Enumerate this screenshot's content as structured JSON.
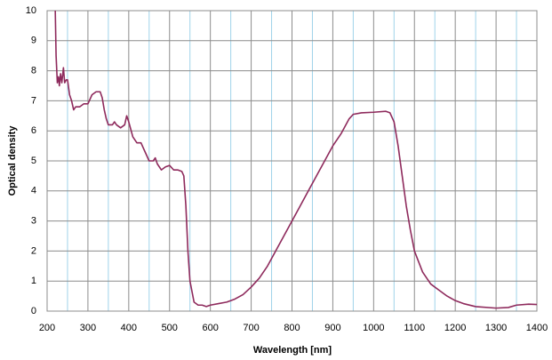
{
  "chart_data": {
    "type": "line",
    "x_label": "Wavelength [nm]",
    "y_label": "Optical density",
    "xlim": [
      200,
      1400
    ],
    "xticks": [
      200,
      300,
      400,
      500,
      600,
      700,
      800,
      900,
      1000,
      1100,
      1200,
      1300,
      1400
    ],
    "x_minor_grid": [
      250,
      350,
      450,
      550,
      650,
      750,
      850,
      950,
      1050,
      1150,
      1250,
      1350
    ],
    "minor_grid_color": "#9fd3ea",
    "grid_color": "#8c8c8c",
    "ylim": [
      0,
      10
    ],
    "yticks": [
      0,
      1,
      2,
      3,
      4,
      5,
      6,
      7,
      8,
      9,
      10
    ],
    "grid": true,
    "x": [
      220,
      222,
      225,
      228,
      230,
      233,
      236,
      240,
      243,
      247,
      250,
      255,
      260,
      265,
      270,
      280,
      290,
      300,
      310,
      320,
      330,
      335,
      340,
      345,
      350,
      360,
      365,
      370,
      380,
      390,
      395,
      400,
      410,
      420,
      430,
      440,
      450,
      460,
      465,
      470,
      480,
      490,
      500,
      510,
      520,
      530,
      535,
      540,
      545,
      550,
      560,
      570,
      580,
      590,
      600,
      620,
      640,
      660,
      680,
      700,
      720,
      740,
      760,
      780,
      800,
      820,
      840,
      860,
      880,
      900,
      920,
      940,
      950,
      970,
      1000,
      1030,
      1040,
      1050,
      1060,
      1070,
      1080,
      1090,
      1100,
      1120,
      1140,
      1160,
      1180,
      1200,
      1220,
      1250,
      1300,
      1330,
      1350,
      1380,
      1400
    ],
    "series": [
      {
        "color": "#8e2a5c",
        "values": [
          10,
          8.5,
          7.6,
          7.8,
          7.5,
          7.9,
          7.6,
          8.1,
          7.6,
          7.7,
          7.7,
          7.2,
          7.0,
          6.7,
          6.8,
          6.8,
          6.9,
          6.9,
          7.2,
          7.3,
          7.3,
          7.1,
          6.7,
          6.4,
          6.2,
          6.2,
          6.3,
          6.2,
          6.1,
          6.2,
          6.5,
          6.3,
          5.8,
          5.6,
          5.6,
          5.3,
          5.0,
          5.0,
          5.1,
          4.9,
          4.7,
          4.8,
          4.85,
          4.7,
          4.7,
          4.65,
          4.5,
          3.5,
          2.0,
          1.0,
          0.3,
          0.2,
          0.2,
          0.15,
          0.2,
          0.25,
          0.3,
          0.4,
          0.55,
          0.8,
          1.1,
          1.5,
          2.0,
          2.5,
          3.0,
          3.5,
          4.0,
          4.5,
          5.0,
          5.5,
          5.9,
          6.4,
          6.55,
          6.6,
          6.62,
          6.65,
          6.6,
          6.3,
          5.5,
          4.5,
          3.5,
          2.7,
          2.0,
          1.3,
          0.9,
          0.7,
          0.5,
          0.35,
          0.25,
          0.15,
          0.1,
          0.12,
          0.2,
          0.23,
          0.22
        ]
      }
    ]
  }
}
